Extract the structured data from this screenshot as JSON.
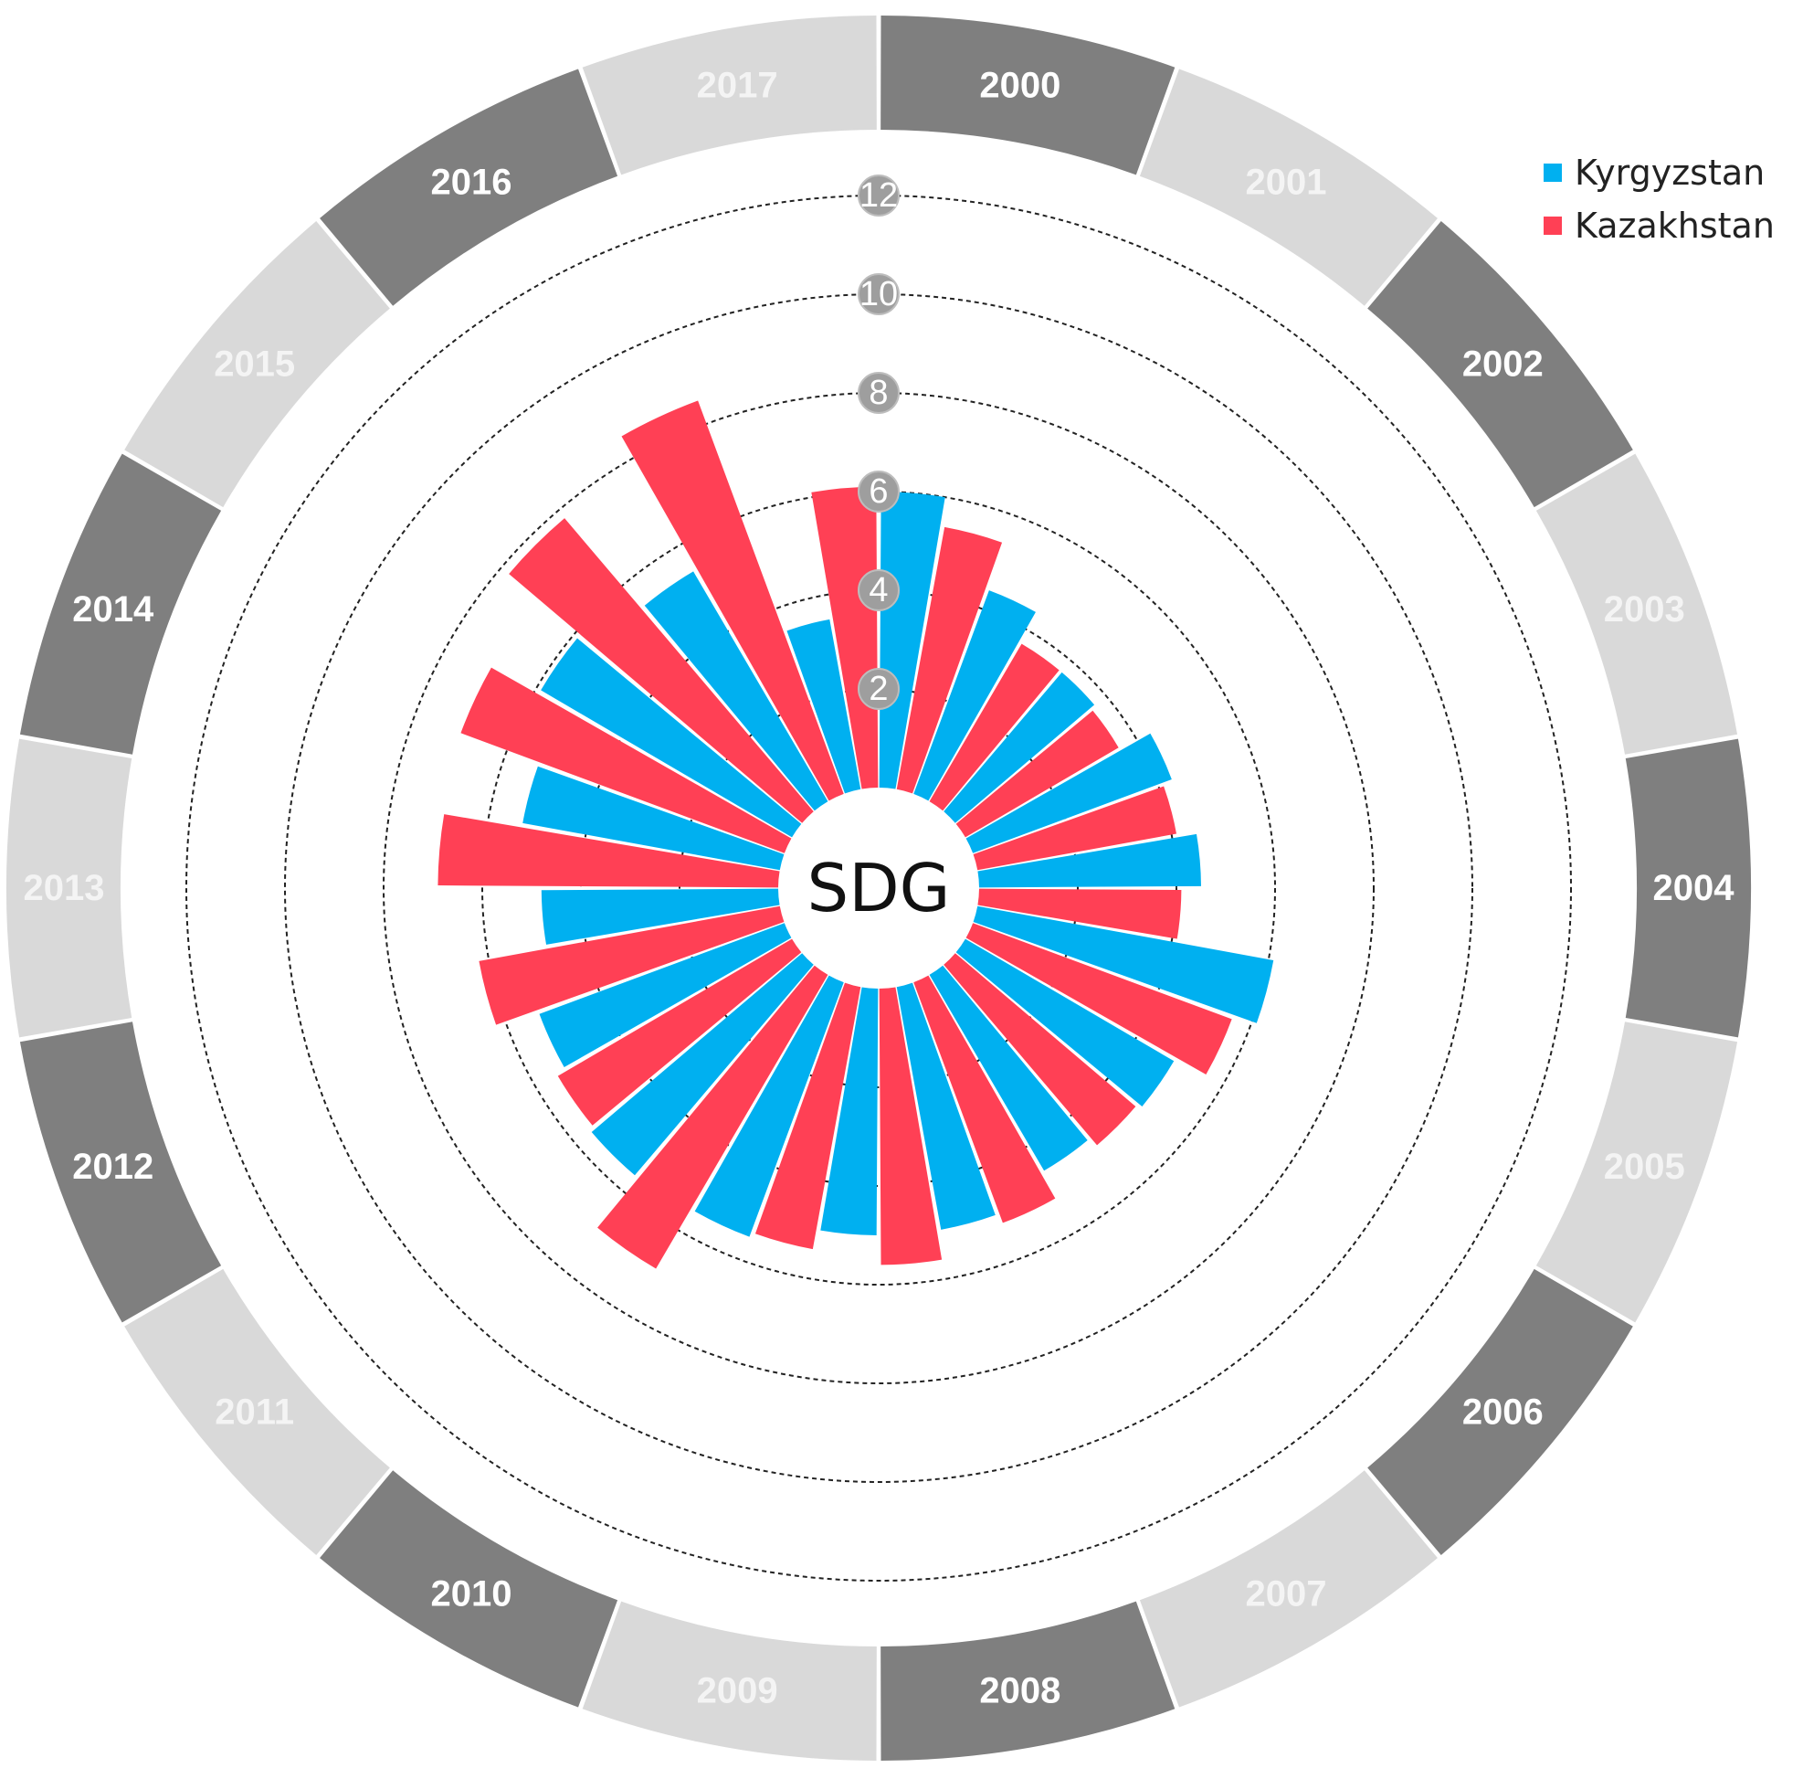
{
  "chart_data": {
    "type": "radial-bar",
    "center_label": "SDG",
    "categories": [
      "2000",
      "2001",
      "2002",
      "2003",
      "2004",
      "2005",
      "2006",
      "2007",
      "2008",
      "2009",
      "2010",
      "2011",
      "2012",
      "2013",
      "2014",
      "2015",
      "2016",
      "2017"
    ],
    "series": [
      {
        "name": "Kyrgyzstan",
        "color": "#00b0f0",
        "values": [
          6.0,
          4.4,
          3.7,
          4.3,
          4.5,
          6.1,
          4.9,
          4.6,
          5.0,
          5.0,
          5.5,
          5.6,
          5.3,
          4.8,
          5.3,
          5.9,
          5.4,
          3.5
        ]
      },
      {
        "name": "Kazakhstan",
        "color": "#ff4055",
        "values": [
          5.4,
          3.7,
          3.6,
          4.1,
          4.1,
          5.6,
          4.8,
          5.2,
          5.6,
          5.4,
          6.9,
          5.5,
          6.2,
          6.9,
          7.0,
          7.8,
          8.5,
          6.1
        ]
      }
    ],
    "radial_ticks": [
      "2",
      "4",
      "6",
      "8",
      "10",
      "12"
    ],
    "rlim": [
      0,
      12
    ],
    "legend_position": "top-right",
    "year_band_colors": {
      "dark": "#7f7f7f",
      "light": "#d9d9d9",
      "dark_text": "#ffffff",
      "light_text": "#f4f4f4"
    }
  }
}
